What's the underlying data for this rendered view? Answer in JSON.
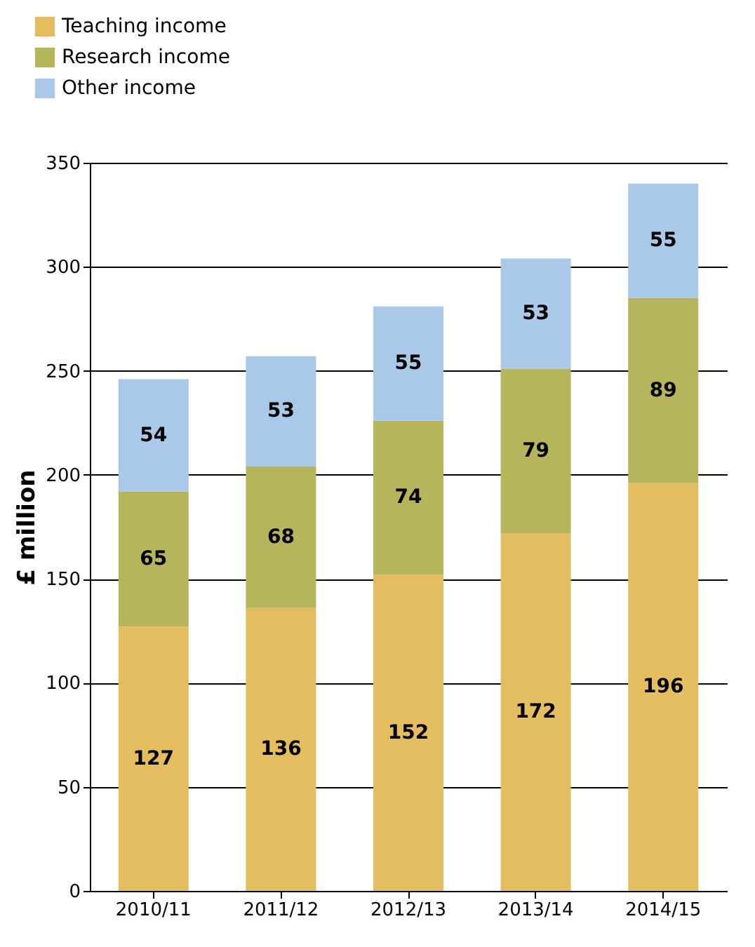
{
  "chart_data": {
    "type": "bar",
    "stacked": true,
    "ylabel": "£ million",
    "categories": [
      "2010/11",
      "2011/12",
      "2012/13",
      "2013/14",
      "2014/15"
    ],
    "series": [
      {
        "name": "Teaching income",
        "color": "#e4bd61",
        "values": [
          127,
          136,
          152,
          172,
          196
        ]
      },
      {
        "name": "Research income",
        "color": "#b6b45c",
        "values": [
          65,
          68,
          74,
          79,
          89
        ]
      },
      {
        "name": "Other income",
        "color": "#aac9e8",
        "values": [
          54,
          53,
          55,
          53,
          55
        ]
      }
    ],
    "ylim": [
      0,
      350
    ],
    "yticks": [
      0,
      50,
      100,
      150,
      200,
      250,
      300,
      350
    ],
    "grid": "y",
    "legend": "top left",
    "data_labels": true
  }
}
